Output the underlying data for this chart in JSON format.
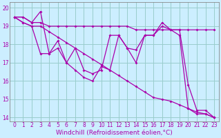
{
  "xlabel": "Windchill (Refroidissement éolien,°C)",
  "bg_color": "#cceeff",
  "grid_color": "#99cccc",
  "line_color": "#aa00aa",
  "x": [
    0,
    1,
    2,
    3,
    4,
    5,
    6,
    7,
    8,
    9,
    10,
    11,
    12,
    13,
    14,
    15,
    16,
    17,
    18,
    19,
    20,
    21,
    22,
    23
  ],
  "series_flat": [
    19.5,
    19.5,
    19.2,
    19.2,
    19.0,
    19.0,
    19.0,
    19.0,
    19.0,
    19.0,
    19.0,
    19.0,
    19.0,
    19.0,
    18.8,
    18.8,
    18.8,
    18.8,
    18.8,
    18.8,
    18.8,
    18.8,
    18.8,
    18.8
  ],
  "series_zigzag": [
    19.5,
    19.5,
    19.2,
    19.8,
    17.5,
    17.8,
    17.0,
    17.8,
    16.6,
    16.4,
    16.6,
    18.5,
    18.5,
    17.8,
    17.7,
    18.5,
    18.5,
    19.2,
    18.8,
    18.8,
    15.8,
    14.4,
    14.4,
    14.0
  ],
  "series_diag1": [
    19.5,
    19.2,
    19.0,
    17.5,
    17.5,
    18.2,
    17.0,
    16.6,
    16.2,
    16.0,
    16.8,
    16.6,
    18.5,
    17.8,
    17.0,
    18.5,
    18.5,
    19.0,
    18.8,
    18.5,
    14.5,
    14.2,
    14.2,
    14.0
  ],
  "series_diag2": [
    19.5,
    19.2,
    19.0,
    19.0,
    18.7,
    18.4,
    18.1,
    17.8,
    17.5,
    17.2,
    16.9,
    16.6,
    16.3,
    16.0,
    15.7,
    15.4,
    15.1,
    15.0,
    14.9,
    14.7,
    14.5,
    14.3,
    14.2,
    14.0
  ],
  "ylim": [
    13.8,
    20.3
  ],
  "yticks": [
    14,
    15,
    16,
    17,
    18,
    19,
    20
  ],
  "xticks": [
    0,
    1,
    2,
    3,
    4,
    5,
    6,
    7,
    8,
    9,
    10,
    11,
    12,
    13,
    14,
    15,
    16,
    17,
    18,
    19,
    20,
    21,
    22,
    23
  ],
  "marker": "D",
  "markersize": 2.0,
  "linewidth": 0.9,
  "tick_fontsize": 5.5,
  "xlabel_fontsize": 6.5
}
